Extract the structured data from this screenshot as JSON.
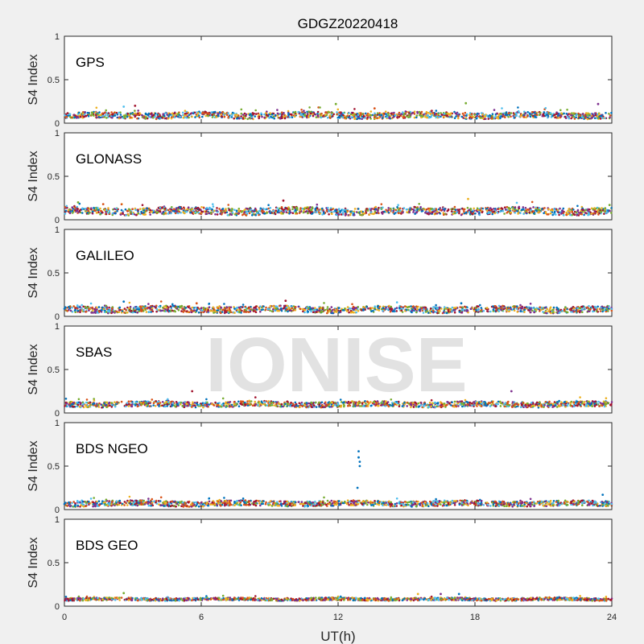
{
  "title": "GDGZ20220418",
  "xlabel": "UT(h)",
  "watermark": "IONISE",
  "colors": [
    "#0072BD",
    "#D95319",
    "#EDB120",
    "#7E2F8E",
    "#77AC30",
    "#4DBEEE",
    "#A2142F"
  ],
  "chart_data": [
    {
      "type": "scatter",
      "title": "GPS",
      "ylabel": "S4 Index",
      "xlim": [
        0,
        24
      ],
      "ylim": [
        0,
        1
      ],
      "xticks": [
        0,
        6,
        12,
        18,
        24
      ],
      "yticks": [
        0,
        0.5,
        1
      ],
      "baseline": 0.09,
      "spread": 0.035,
      "spikes": [
        {
          "x": 2.6,
          "y": 0.19
        },
        {
          "x": 3.1,
          "y": 0.2
        },
        {
          "x": 11.9,
          "y": 0.22
        },
        {
          "x": 17.6,
          "y": 0.23
        },
        {
          "x": 23.4,
          "y": 0.22
        },
        {
          "x": 13.6,
          "y": 0.17
        }
      ]
    },
    {
      "type": "scatter",
      "title": "GLONASS",
      "ylabel": "S4 Index",
      "xlim": [
        0,
        24
      ],
      "ylim": [
        0,
        1
      ],
      "xticks": [
        0,
        6,
        12,
        18,
        24
      ],
      "yticks": [
        0,
        0.5,
        1
      ],
      "baseline": 0.1,
      "spread": 0.04,
      "spikes": [
        {
          "x": 0.6,
          "y": 0.2
        },
        {
          "x": 1.7,
          "y": 0.18
        },
        {
          "x": 9.6,
          "y": 0.22
        },
        {
          "x": 17.7,
          "y": 0.24
        },
        {
          "x": 23.9,
          "y": 0.17
        }
      ]
    },
    {
      "type": "scatter",
      "title": "GALILEO",
      "ylabel": "S4 Index",
      "xlim": [
        0,
        24
      ],
      "ylim": [
        0,
        1
      ],
      "xticks": [
        0,
        6,
        12,
        18,
        24
      ],
      "yticks": [
        0,
        0.5,
        1
      ],
      "baseline": 0.08,
      "spread": 0.035,
      "spikes": [
        {
          "x": 2.6,
          "y": 0.17
        },
        {
          "x": 9.7,
          "y": 0.18
        },
        {
          "x": 5.8,
          "y": 0.15
        },
        {
          "x": 17.4,
          "y": 0.15
        }
      ]
    },
    {
      "type": "scatter",
      "title": "SBAS",
      "ylabel": "S4 Index",
      "xlim": [
        0,
        24
      ],
      "ylim": [
        0,
        1
      ],
      "xticks": [
        0,
        6,
        12,
        18,
        24
      ],
      "yticks": [
        0,
        0.5,
        1
      ],
      "baseline": 0.1,
      "spread": 0.03,
      "spikes": [
        {
          "x": 5.6,
          "y": 0.25
        },
        {
          "x": 19.6,
          "y": 0.25
        }
      ]
    },
    {
      "type": "scatter",
      "title": "BDS NGEO",
      "ylabel": "S4 Index",
      "xlim": [
        0,
        24
      ],
      "ylim": [
        0,
        1
      ],
      "xticks": [
        0,
        6,
        12,
        18,
        24
      ],
      "yticks": [
        0,
        0.5,
        1
      ],
      "baseline": 0.07,
      "spread": 0.03,
      "spikes": [
        {
          "x": 12.9,
          "y": 0.67
        },
        {
          "x": 12.9,
          "y": 0.6
        },
        {
          "x": 12.95,
          "y": 0.55
        },
        {
          "x": 12.95,
          "y": 0.5
        },
        {
          "x": 12.85,
          "y": 0.25
        },
        {
          "x": 23.6,
          "y": 0.17
        }
      ]
    },
    {
      "type": "scatter",
      "title": "BDS GEO",
      "ylabel": "S4 Index",
      "xlim": [
        0,
        24
      ],
      "ylim": [
        0,
        1
      ],
      "xticks": [
        0,
        6,
        12,
        18,
        24
      ],
      "yticks": [
        0,
        0.5,
        1
      ],
      "baseline": 0.08,
      "spread": 0.015,
      "spikes": [
        {
          "x": 2.6,
          "y": 0.15
        },
        {
          "x": 15.5,
          "y": 0.14
        },
        {
          "x": 16.5,
          "y": 0.14
        },
        {
          "x": 17.3,
          "y": 0.14
        }
      ]
    }
  ]
}
